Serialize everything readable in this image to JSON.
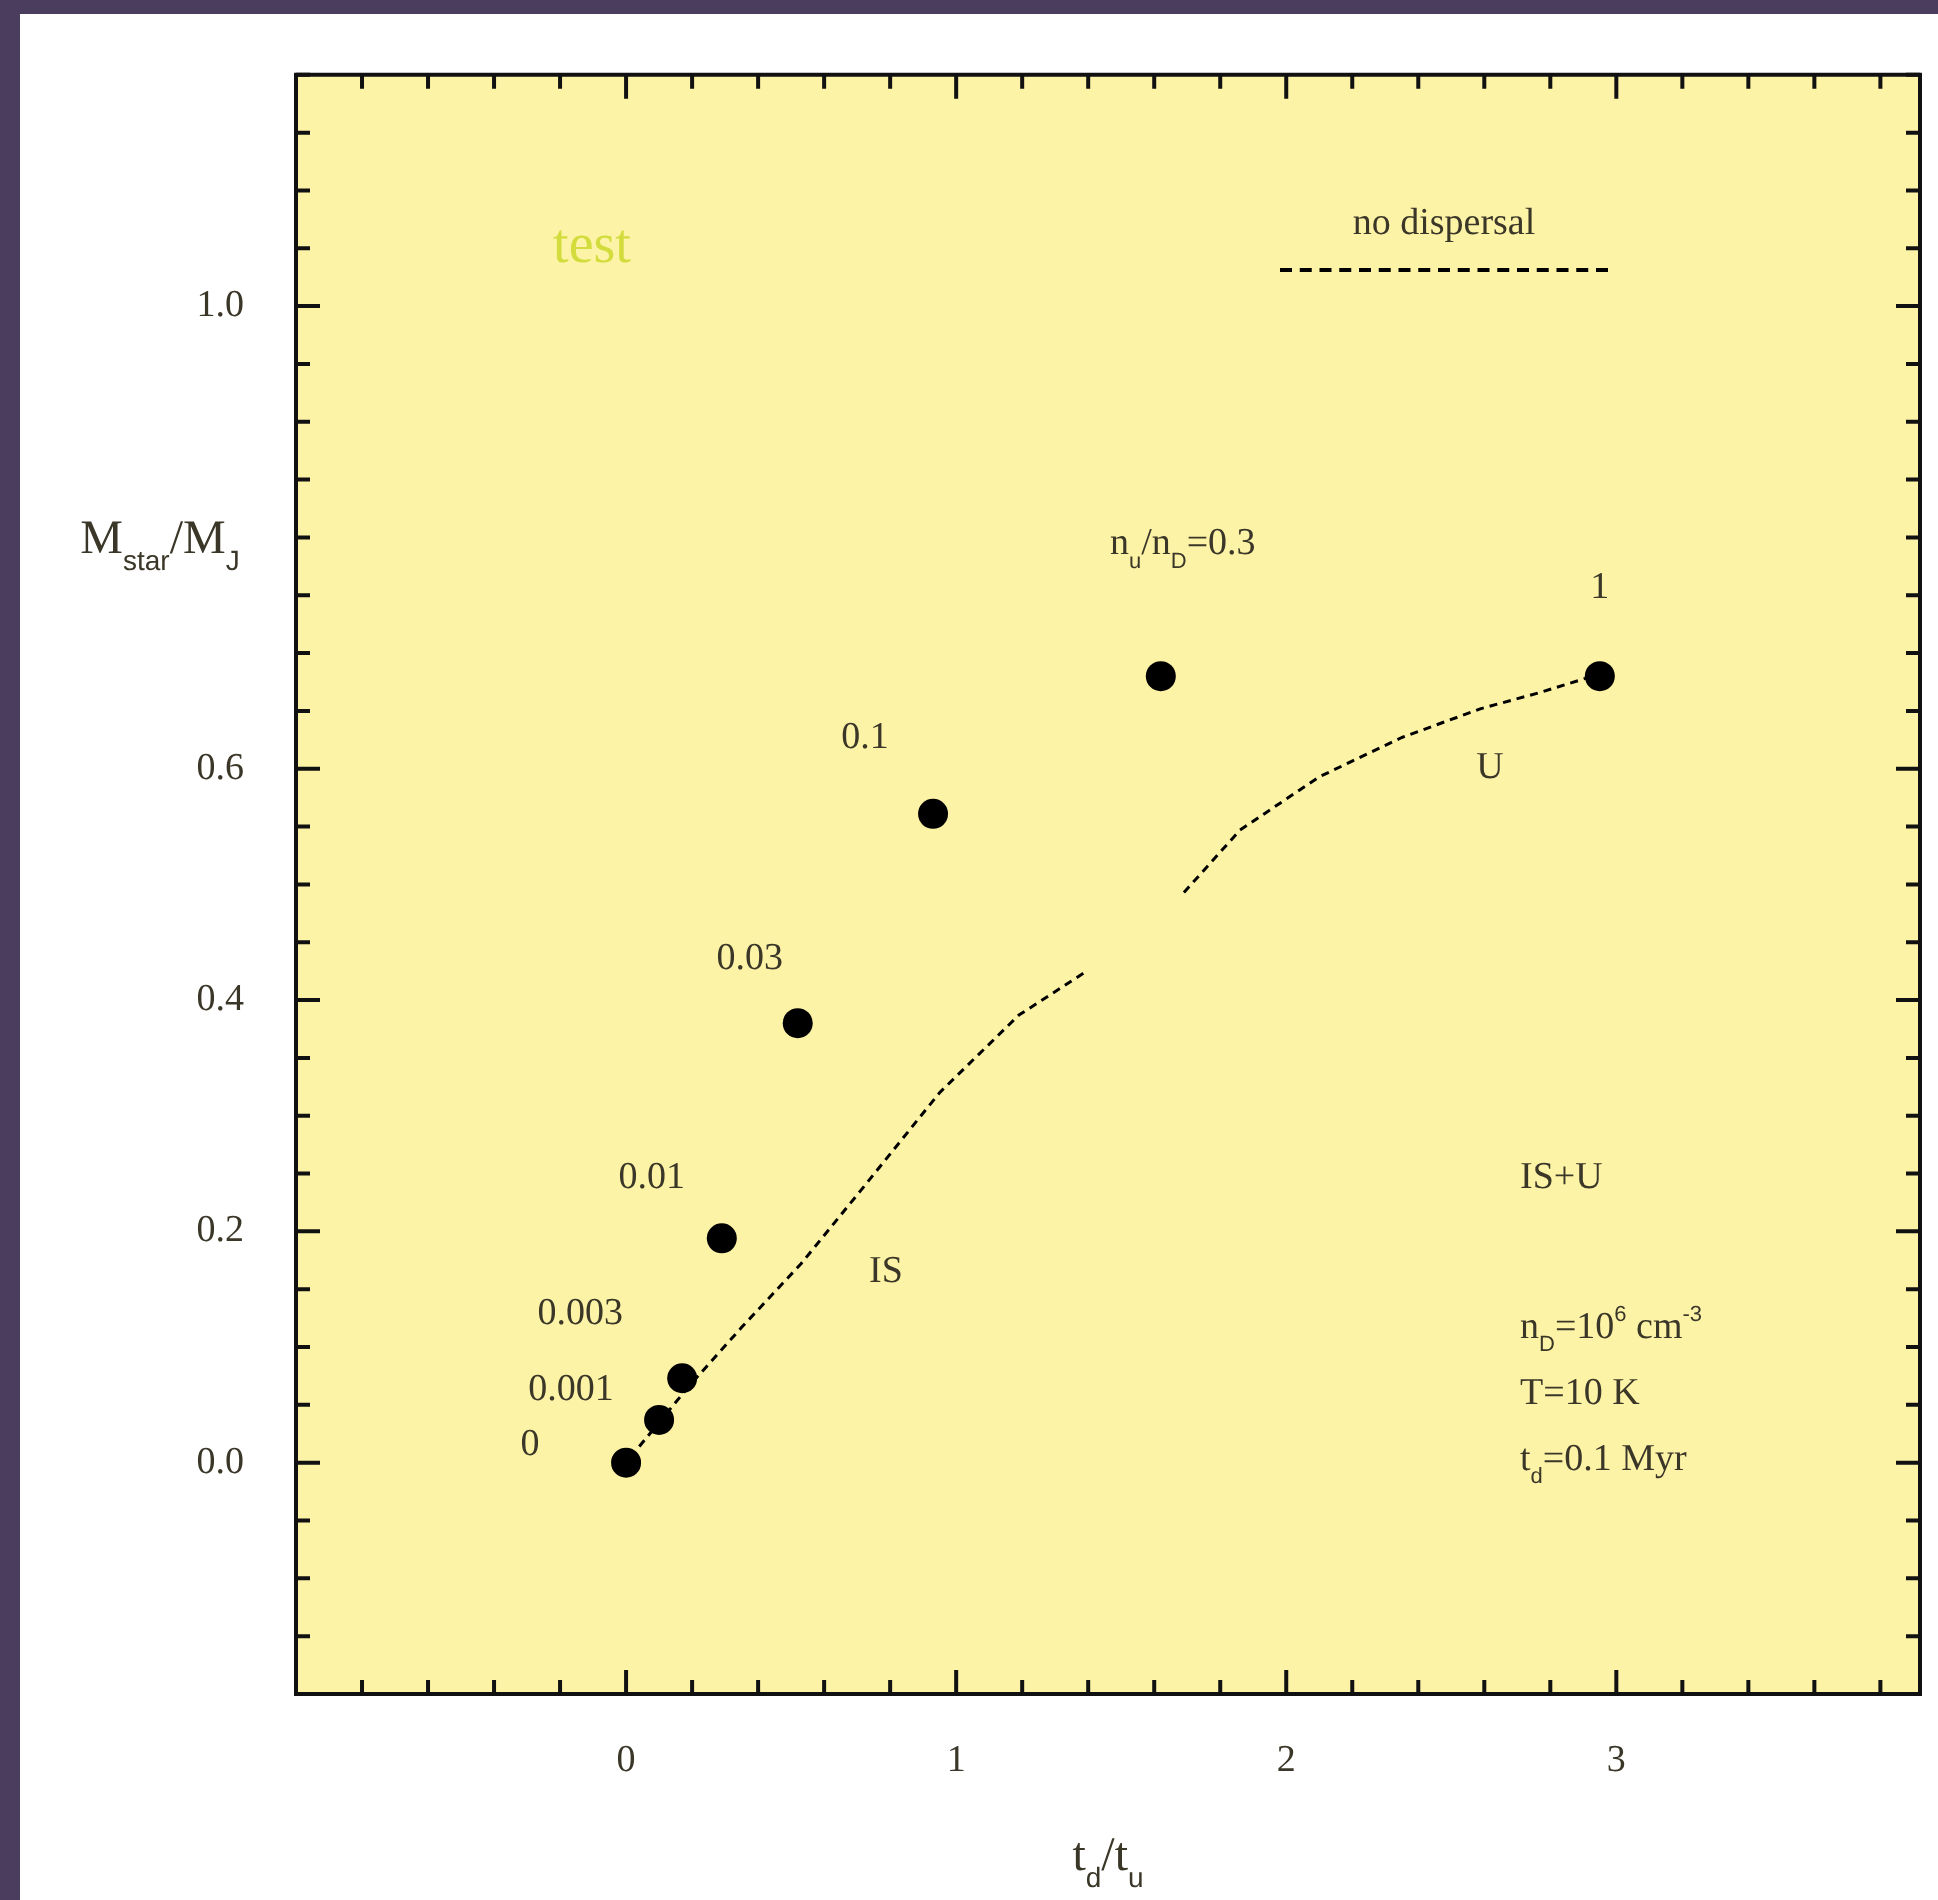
{
  "chart_data": {
    "type": "scatter",
    "xlabel": "t$_{d}$/t$_{u}$",
    "ylabel": "M$_{star}$/M$_{J}$",
    "xlim": [
      -1,
      3.92
    ],
    "ylim": [
      -0.2,
      1.2
    ],
    "xticks": [
      {
        "value": -1,
        "label": null
      },
      {
        "value": -0.8,
        "label": null
      },
      {
        "value": -0.6,
        "label": null
      },
      {
        "value": -0.4,
        "label": null
      },
      {
        "value": -0.2,
        "label": null
      },
      0,
      {
        "value": 0.2,
        "label": null
      },
      {
        "value": 0.4,
        "label": null
      },
      {
        "value": 0.6,
        "label": null
      },
      {
        "value": 0.8,
        "label": null
      },
      1,
      {
        "value": 1.2,
        "label": null
      },
      {
        "value": 1.4,
        "label": null
      },
      {
        "value": 1.6,
        "label": null
      },
      {
        "value": 1.8,
        "label": null
      },
      2,
      {
        "value": 2.2,
        "label": null
      },
      {
        "value": 2.4,
        "label": null
      },
      {
        "value": 2.6,
        "label": null
      },
      {
        "value": 2.8,
        "label": null
      },
      3,
      {
        "value": 3.2,
        "label": null
      },
      {
        "value": 3.4,
        "label": null
      },
      {
        "value": 3.6,
        "label": null
      },
      {
        "value": 3.8,
        "label": null
      }
    ],
    "yticks": [
      {
        "value": -0.2,
        "label": null
      },
      {
        "value": -0.15,
        "label": null
      },
      {
        "value": -0.1,
        "label": null
      },
      {
        "value": -0.05,
        "label": null
      },
      {
        "value": 0,
        "label": "0.0"
      },
      {
        "value": 0.05,
        "label": null
      },
      {
        "value": 0.1,
        "label": null
      },
      {
        "value": 0.15,
        "label": null
      },
      0.2,
      {
        "value": 0.25,
        "label": null
      },
      {
        "value": 0.3,
        "label": null
      },
      {
        "value": 0.35,
        "label": null
      },
      0.4,
      {
        "value": 0.45,
        "label": null
      },
      {
        "value": 0.5,
        "label": null
      },
      {
        "value": 0.55,
        "label": null
      },
      0.6,
      {
        "value": 0.65,
        "label": null
      },
      {
        "value": 0.7,
        "label": null
      },
      {
        "value": 0.75,
        "label": null
      },
      {
        "value": 0.8,
        "label": null
      },
      {
        "value": 0.85,
        "label": null
      },
      {
        "value": 0.9,
        "label": null
      },
      {
        "value": 0.95,
        "label": null
      },
      {
        "value": 1,
        "label": "1.0"
      },
      {
        "value": 1.05,
        "label": null
      },
      {
        "value": 1.1,
        "label": null
      },
      {
        "value": 1.15,
        "label": null
      },
      {
        "value": 1.2,
        "label": null
      }
    ],
    "grid": false,
    "legend": "top right",
    "series": [
      {
        "type": "scatter",
        "color": "#000000",
        "marker": "circle",
        "x": [
          0,
          0.1,
          0.17,
          0.29,
          0.52,
          0.93,
          1.62,
          2.95
        ],
        "values": [
          0,
          0.037,
          0.073,
          0.194,
          0.38,
          0.561,
          0.68,
          0.68
        ]
      },
      {
        "type": "line",
        "name": "no dispersal",
        "color": "#000000",
        "line_style": "dashed",
        "marker": "none",
        "x": [
          0.04,
          0.19,
          0.35,
          0.53,
          0.71,
          0.95,
          1.19,
          1.39,
          1.54,
          1.69,
          1.86,
          2.1,
          2.35,
          2.59,
          2.77,
          2.95
        ],
        "values": [
          0.014,
          0.066,
          0.117,
          0.172,
          0.235,
          0.32,
          0.387,
          0.424,
          null,
          0.493,
          0.547,
          0.593,
          0.627,
          0.652,
          0.666,
          0.682
        ]
      }
    ],
    "annotations": [
      "test",
      {
        "text": "0",
        "x": 0,
        "y": 0
      },
      {
        "text": "0.001",
        "x": 0.1,
        "y": 0.037
      },
      {
        "text": "0.003",
        "x": 0.17,
        "y": 0.073
      },
      {
        "text": "0.01",
        "x": 0.29,
        "y": 0.194
      },
      {
        "text": "0.03",
        "x": 0.52,
        "y": 0.38
      },
      {
        "text": "0.1",
        "x": 0.93,
        "y": 0.561
      },
      {
        "text": "n$_{u}$/n$_{D}$=0.3",
        "x": 1.62,
        "y": 0.68
      },
      {
        "text": "1",
        "x": 2.95,
        "y": 0.68
      },
      "IS",
      "U",
      "IS+U",
      "n$_{D}$=10$^{6}$ cm$^{-3}$",
      "T=10 K",
      "t$_{d}$=0.1 Myr"
    ]
  }
}
